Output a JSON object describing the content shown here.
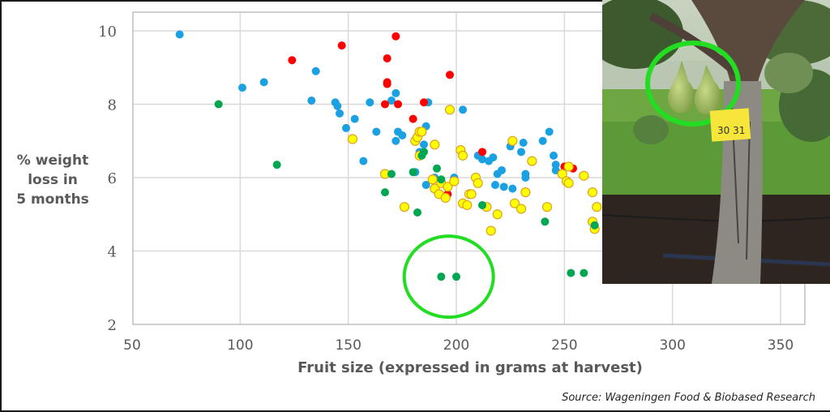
{
  "chart_data": {
    "type": "scatter",
    "title": "",
    "xlabel": "Fruit size (expressed in grams at harvest)",
    "ylabel": "% weight loss in 5 months",
    "ylabel_lines": [
      "% weight",
      "loss in",
      "5 months"
    ],
    "xlim": [
      50,
      360
    ],
    "ylim": [
      2,
      10.5
    ],
    "xticks": [
      50,
      100,
      150,
      200,
      250,
      300,
      350
    ],
    "yticks": [
      2,
      4,
      6,
      8,
      10
    ],
    "grid": true,
    "legend": "none",
    "series": [
      {
        "name": "blue",
        "color": "#1BA1E2",
        "points": [
          [
            72,
            9.9
          ],
          [
            101,
            8.45
          ],
          [
            111,
            8.6
          ],
          [
            133,
            8.1
          ],
          [
            135,
            8.9
          ],
          [
            144,
            8.05
          ],
          [
            145,
            7.95
          ],
          [
            146,
            7.75
          ],
          [
            149,
            7.35
          ],
          [
            153,
            7.6
          ],
          [
            157,
            6.45
          ],
          [
            160,
            8.05
          ],
          [
            163,
            7.25
          ],
          [
            170,
            8.1
          ],
          [
            172,
            7.0
          ],
          [
            173,
            7.25
          ],
          [
            175,
            7.15
          ],
          [
            172,
            8.3
          ],
          [
            183,
            6.7
          ],
          [
            185,
            6.9
          ],
          [
            186,
            7.4
          ],
          [
            187,
            8.05
          ],
          [
            190,
            6.0
          ],
          [
            199,
            6.0
          ],
          [
            203,
            7.85
          ],
          [
            210,
            6.6
          ],
          [
            212,
            6.5
          ],
          [
            215,
            6.45
          ],
          [
            217,
            6.55
          ],
          [
            219,
            6.1
          ],
          [
            221,
            6.2
          ],
          [
            222,
            5.75
          ],
          [
            225,
            6.85
          ],
          [
            226,
            5.7
          ],
          [
            230,
            6.7
          ],
          [
            231,
            6.95
          ],
          [
            232,
            6.0
          ],
          [
            232,
            6.1
          ],
          [
            240,
            7.0
          ],
          [
            243,
            7.25
          ],
          [
            245,
            6.6
          ],
          [
            246,
            6.35
          ],
          [
            246,
            6.2
          ],
          [
            186,
            5.8
          ],
          [
            181,
            6.15
          ],
          [
            218,
            5.8
          ]
        ]
      },
      {
        "name": "red",
        "color": "#FF0000",
        "points": [
          [
            124,
            9.2
          ],
          [
            147,
            9.6
          ],
          [
            168,
            9.25
          ],
          [
            172,
            9.85
          ],
          [
            168,
            8.55
          ],
          [
            168,
            8.6
          ],
          [
            167,
            8.0
          ],
          [
            173,
            8.0
          ],
          [
            185,
            8.05
          ],
          [
            197,
            8.8
          ],
          [
            180,
            7.6
          ],
          [
            212,
            6.7
          ],
          [
            250,
            6.3
          ],
          [
            254,
            6.25
          ],
          [
            196,
            5.55
          ]
        ]
      },
      {
        "name": "yellow",
        "color": "#FFFF00",
        "outline": "#E0A020",
        "points": [
          [
            152,
            7.05
          ],
          [
            167,
            6.1
          ],
          [
            176,
            5.2
          ],
          [
            181,
            7.0
          ],
          [
            182,
            7.1
          ],
          [
            183,
            7.25
          ],
          [
            184,
            7.25
          ],
          [
            183,
            6.6
          ],
          [
            189,
            5.95
          ],
          [
            190,
            6.9
          ],
          [
            190,
            5.7
          ],
          [
            192,
            5.55
          ],
          [
            193,
            5.85
          ],
          [
            195,
            5.45
          ],
          [
            196,
            5.75
          ],
          [
            197,
            7.85
          ],
          [
            199,
            5.9
          ],
          [
            202,
            6.75
          ],
          [
            203,
            6.6
          ],
          [
            203,
            5.3
          ],
          [
            205,
            5.25
          ],
          [
            206,
            5.55
          ],
          [
            207,
            5.55
          ],
          [
            209,
            6.0
          ],
          [
            210,
            5.85
          ],
          [
            214,
            5.2
          ],
          [
            216,
            4.55
          ],
          [
            219,
            5.0
          ],
          [
            226,
            7.0
          ],
          [
            227,
            5.3
          ],
          [
            230,
            5.15
          ],
          [
            232,
            5.6
          ],
          [
            235,
            6.45
          ],
          [
            242,
            5.2
          ],
          [
            249,
            6.1
          ],
          [
            251,
            5.9
          ],
          [
            252,
            5.85
          ],
          [
            252,
            6.3
          ],
          [
            259,
            6.05
          ],
          [
            263,
            5.6
          ],
          [
            265,
            5.2
          ],
          [
            263,
            4.8
          ],
          [
            264,
            4.6
          ]
        ]
      },
      {
        "name": "green",
        "color": "#00A651",
        "points": [
          [
            90,
            8.0
          ],
          [
            117,
            6.35
          ],
          [
            167,
            5.6
          ],
          [
            170,
            6.1
          ],
          [
            180,
            6.15
          ],
          [
            182,
            5.05
          ],
          [
            184,
            6.6
          ],
          [
            191,
            6.25
          ],
          [
            193,
            5.95
          ],
          [
            185,
            6.7
          ],
          [
            212,
            5.25
          ],
          [
            241,
            4.8
          ],
          [
            264,
            4.7
          ],
          [
            193,
            3.3
          ],
          [
            200,
            3.3
          ],
          [
            253,
            3.4
          ],
          [
            259,
            3.4
          ]
        ]
      }
    ],
    "annotations": [
      {
        "type": "circle",
        "color": "#22DD22",
        "center": [
          198,
          3.3
        ],
        "label": "highlighted low-loss pair"
      }
    ]
  },
  "photo": {
    "description": "Two green pears hanging on a pear tree, circled in green, with yellow tag",
    "tag_text": "30 31"
  },
  "source": "Source: Wageningen Food & Biobased Research"
}
